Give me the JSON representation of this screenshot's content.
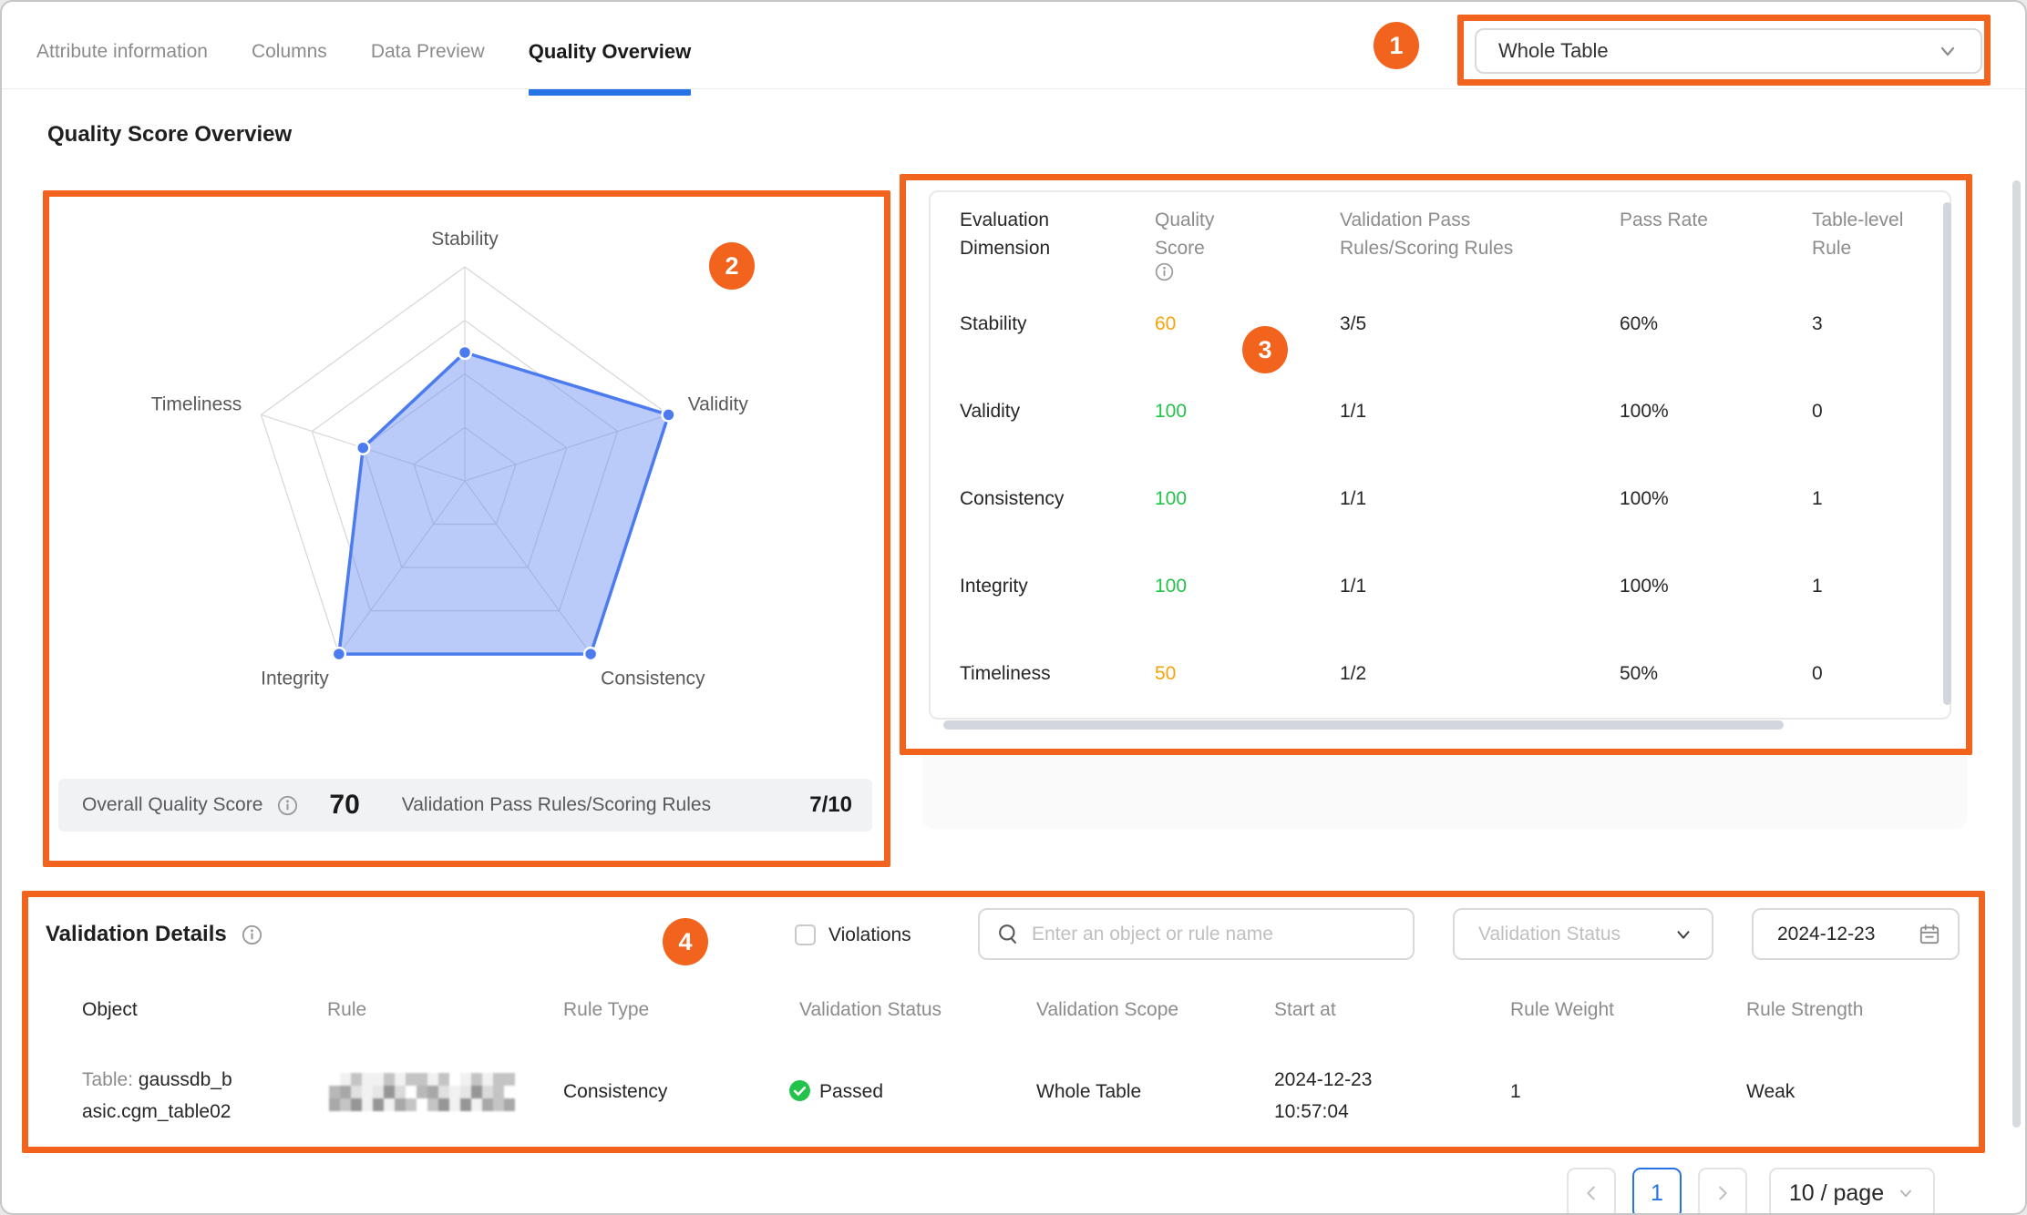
{
  "colors": {
    "accent": "#F2641D",
    "blue": "#2673E5",
    "radar_blue": "#4C7BF0",
    "radar_fill": "rgba(101,139,245,0.45)",
    "good": "#23C24A",
    "warn": "#F5A30A"
  },
  "tabs": {
    "items": [
      {
        "label": "Attribute information",
        "active": false
      },
      {
        "label": "Columns",
        "active": false
      },
      {
        "label": "Data Preview",
        "active": false
      },
      {
        "label": "Quality Overview",
        "active": true
      }
    ]
  },
  "scope_select": {
    "value": "Whole Table"
  },
  "annotations": {
    "a1": "1",
    "a2": "2",
    "a3": "3",
    "a4": "4"
  },
  "section": {
    "title": "Quality Score Overview"
  },
  "chart_data": {
    "type": "radar",
    "categories": [
      "Stability",
      "Validity",
      "Consistency",
      "Integrity",
      "Timeliness"
    ],
    "values": [
      60,
      100,
      100,
      100,
      50
    ],
    "max": 100,
    "grid_levels": 4,
    "title": "",
    "legend_position": "none"
  },
  "score_summary": {
    "overall_label": "Overall Quality Score",
    "overall_value": "70",
    "rules_label": "Validation Pass Rules/Scoring Rules",
    "rules_value": "7/10"
  },
  "dimension_table": {
    "headers": [
      {
        "line1": "Evaluation",
        "line2": "Dimension",
        "info": false
      },
      {
        "line1": "Quality",
        "line2": "Score",
        "info": true
      },
      {
        "line1": "Validation Pass",
        "line2": "Rules/Scoring Rules",
        "info": false
      },
      {
        "line1": "Pass Rate",
        "line2": "",
        "info": false
      },
      {
        "line1": "Table-level",
        "line2": "Rule",
        "info": false
      }
    ],
    "rows": [
      {
        "dimension": "Stability",
        "score": "60",
        "score_tone": "warn",
        "pass": "3/5",
        "rate": "60%",
        "table_rule": "3"
      },
      {
        "dimension": "Validity",
        "score": "100",
        "score_tone": "good",
        "pass": "1/1",
        "rate": "100%",
        "table_rule": "0"
      },
      {
        "dimension": "Consistency",
        "score": "100",
        "score_tone": "good",
        "pass": "1/1",
        "rate": "100%",
        "table_rule": "1"
      },
      {
        "dimension": "Integrity",
        "score": "100",
        "score_tone": "good",
        "pass": "1/1",
        "rate": "100%",
        "table_rule": "1"
      },
      {
        "dimension": "Timeliness",
        "score": "50",
        "score_tone": "warn",
        "pass": "1/2",
        "rate": "50%",
        "table_rule": "0"
      }
    ]
  },
  "validation_details": {
    "title": "Validation Details",
    "violations_label": "Violations",
    "violations_checked": false,
    "search_placeholder": "Enter an object or rule name",
    "status_placeholder": "Validation Status",
    "date_value": "2024-12-23",
    "headers": [
      "Object",
      "Rule",
      "Rule Type",
      "Validation Status",
      "Validation Scope",
      "Start at",
      "Rule Weight",
      "Rule Strength"
    ],
    "row": {
      "object_prefix": "Table:",
      "object_line1": "gaussdb_b",
      "object_line2": "asic.cgm_table02",
      "rule_redacted": true,
      "rule_type": "Consistency",
      "status": "Passed",
      "scope": "Whole Table",
      "start_date": "2024-12-23",
      "start_time": "10:57:04",
      "weight": "1",
      "strength": "Weak"
    }
  },
  "pagination": {
    "page": "1",
    "page_size": "10 / page"
  }
}
